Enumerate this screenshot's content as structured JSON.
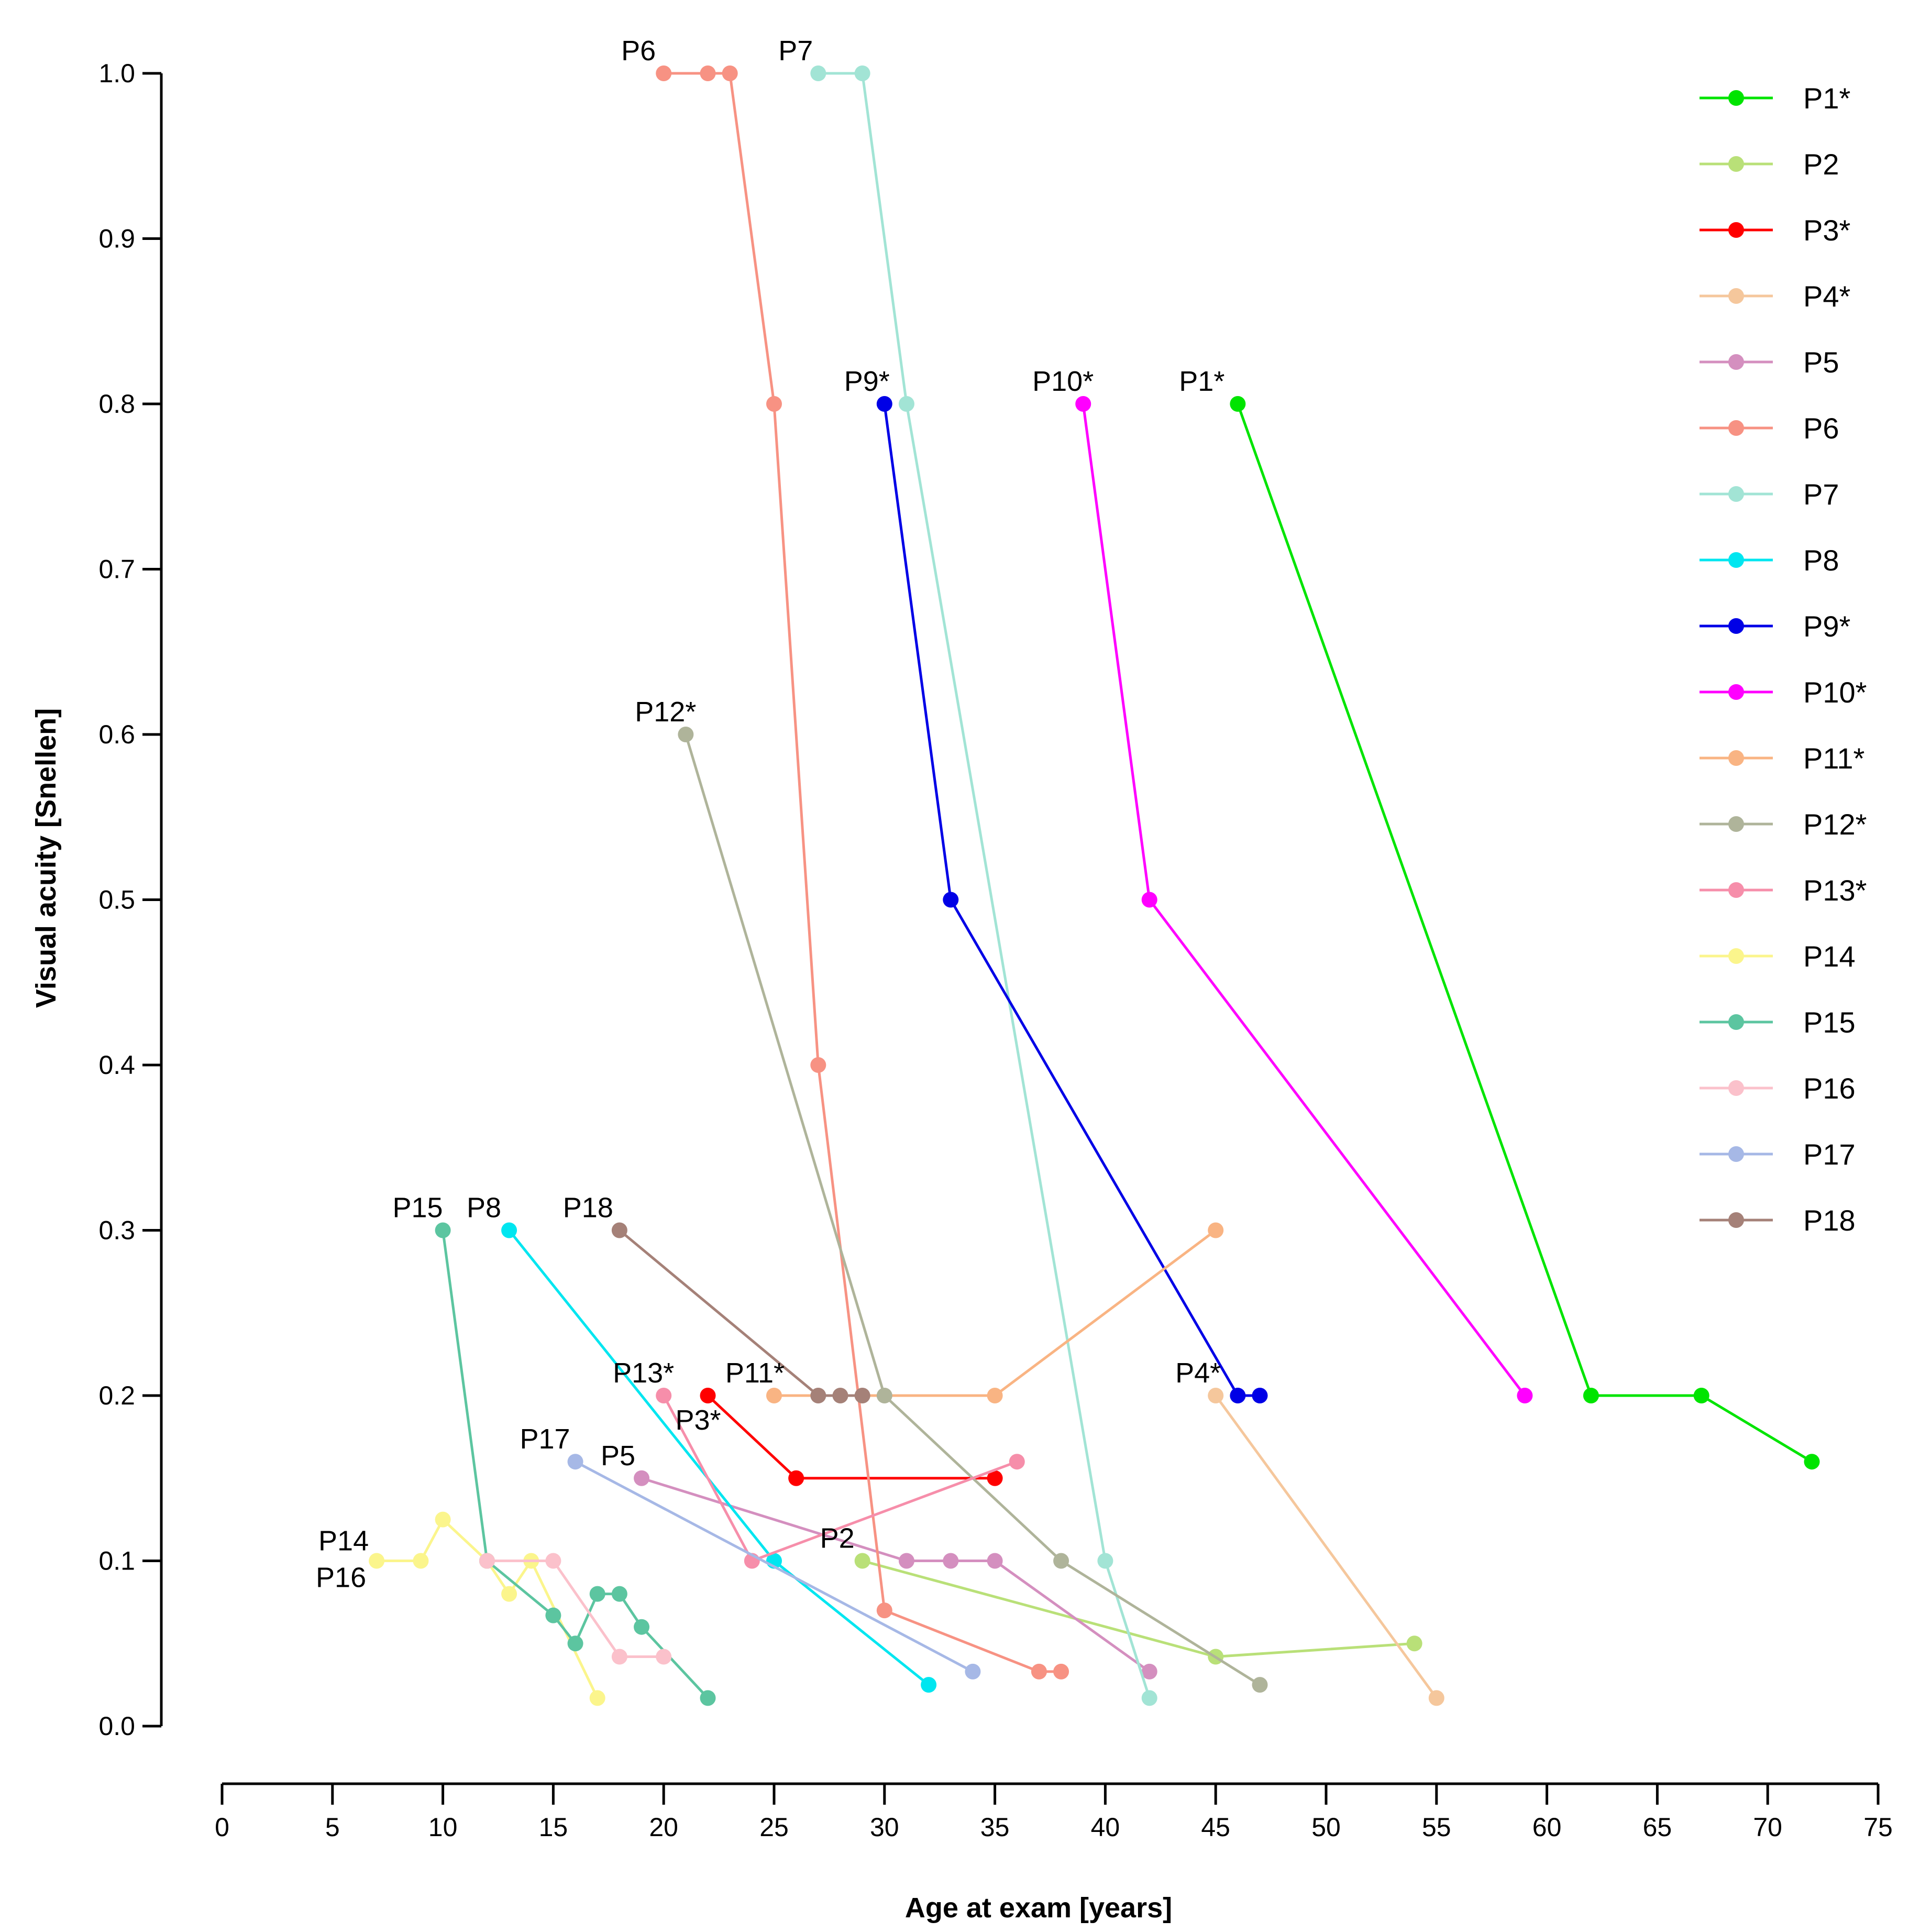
{
  "chart_data": {
    "type": "line",
    "title": "",
    "xlabel": "Age at exam [years]",
    "ylabel": "Visual acuity [Snellen]",
    "xlim": [
      0,
      75
    ],
    "ylim": [
      0,
      1.0
    ],
    "xticks": [
      0,
      5,
      10,
      15,
      20,
      25,
      30,
      35,
      40,
      45,
      50,
      55,
      60,
      65,
      70,
      75
    ],
    "xtick_labels": [
      "0",
      "5",
      "10",
      "15",
      "20",
      "25",
      "30",
      "35",
      "40",
      "45",
      "50",
      "55",
      "60",
      "65",
      "70",
      "75"
    ],
    "yticks": [
      0,
      0.1,
      0.2,
      0.3,
      0.4,
      0.5,
      0.6,
      0.7,
      0.8,
      0.9,
      1.0
    ],
    "ytick_labels": [
      "0.0",
      "0.1",
      "0.2",
      "0.3",
      "0.4",
      "0.5",
      "0.6",
      "0.7",
      "0.8",
      "0.9",
      "1.0"
    ],
    "grid": false,
    "legend_position": "right",
    "series": [
      {
        "name": "P1*",
        "color": "#00e400",
        "x": [
          46,
          62,
          67,
          72
        ],
        "y": [
          0.8,
          0.2,
          0.2,
          0.16
        ],
        "label": "P1*"
      },
      {
        "name": "P2",
        "color": "#b9e078",
        "x": [
          29,
          45,
          54
        ],
        "y": [
          0.1,
          0.042,
          0.05
        ],
        "label": "P2"
      },
      {
        "name": "P3*",
        "color": "#ff0000",
        "x": [
          22,
          26,
          35
        ],
        "y": [
          0.2,
          0.15,
          0.15
        ],
        "label": "P3*"
      },
      {
        "name": "P4*",
        "color": "#f5c79c",
        "x": [
          45,
          55
        ],
        "y": [
          0.2,
          0.017
        ],
        "label": "P4*"
      },
      {
        "name": "P5",
        "color": "#d48fbf",
        "x": [
          19,
          31,
          33,
          35,
          42
        ],
        "y": [
          0.15,
          0.1,
          0.1,
          0.1,
          0.033
        ],
        "label": "P5"
      },
      {
        "name": "P6",
        "color": "#f79283",
        "x": [
          20,
          22,
          23,
          25,
          27,
          30,
          37,
          38
        ],
        "y": [
          1.0,
          1.0,
          1.0,
          0.8,
          0.4,
          0.07,
          0.033,
          0.033
        ],
        "label": "P6"
      },
      {
        "name": "P7",
        "color": "#a2e4d5",
        "x": [
          27,
          29,
          31,
          40,
          42
        ],
        "y": [
          1.0,
          1.0,
          0.8,
          0.1,
          0.017
        ],
        "label": "P7"
      },
      {
        "name": "P8",
        "color": "#00e6f0",
        "x": [
          13,
          25,
          32
        ],
        "y": [
          0.3,
          0.1,
          0.025
        ],
        "label": "P8"
      },
      {
        "name": "P9*",
        "color": "#0000e6",
        "x": [
          30,
          33,
          46,
          47
        ],
        "y": [
          0.8,
          0.5,
          0.2,
          0.2
        ],
        "label": "P9*"
      },
      {
        "name": "P10*",
        "color": "#ff00ff",
        "x": [
          39,
          42,
          59
        ],
        "y": [
          0.8,
          0.5,
          0.2
        ],
        "label": "P10*"
      },
      {
        "name": "P11*",
        "color": "#f9b483",
        "x": [
          25,
          35,
          45
        ],
        "y": [
          0.2,
          0.2,
          0.3
        ],
        "label": "P11*"
      },
      {
        "name": "P12*",
        "color": "#afb49a",
        "x": [
          21,
          30,
          38,
          47
        ],
        "y": [
          0.6,
          0.2,
          0.1,
          0.025
        ],
        "label": "P12*"
      },
      {
        "name": "P13*",
        "color": "#f68eaa",
        "x": [
          20,
          24,
          36
        ],
        "y": [
          0.2,
          0.1,
          0.16
        ],
        "label": "P13*"
      },
      {
        "name": "P14",
        "color": "#fbf58c",
        "x": [
          7,
          9,
          10,
          12,
          13,
          14,
          17
        ],
        "y": [
          0.1,
          0.1,
          0.125,
          0.1,
          0.08,
          0.1,
          0.017
        ],
        "label": "P14"
      },
      {
        "name": "P15",
        "color": "#5cc5a0",
        "x": [
          10,
          12,
          15,
          16,
          17,
          18,
          19,
          22
        ],
        "y": [
          0.3,
          0.1,
          0.067,
          0.05,
          0.08,
          0.08,
          0.06,
          0.017
        ],
        "label": "P15"
      },
      {
        "name": "P16",
        "color": "#fbc1cb",
        "x": [
          12,
          15,
          18,
          20
        ],
        "y": [
          0.1,
          0.1,
          0.042,
          0.042
        ],
        "label": "P16"
      },
      {
        "name": "P17",
        "color": "#a6b8e6",
        "x": [
          16,
          34
        ],
        "y": [
          0.16,
          0.033
        ],
        "label": "P17"
      },
      {
        "name": "P18",
        "color": "#a58178",
        "x": [
          18,
          27,
          28,
          29
        ],
        "y": [
          0.3,
          0.2,
          0.2,
          0.2
        ],
        "label": "P18"
      }
    ]
  }
}
